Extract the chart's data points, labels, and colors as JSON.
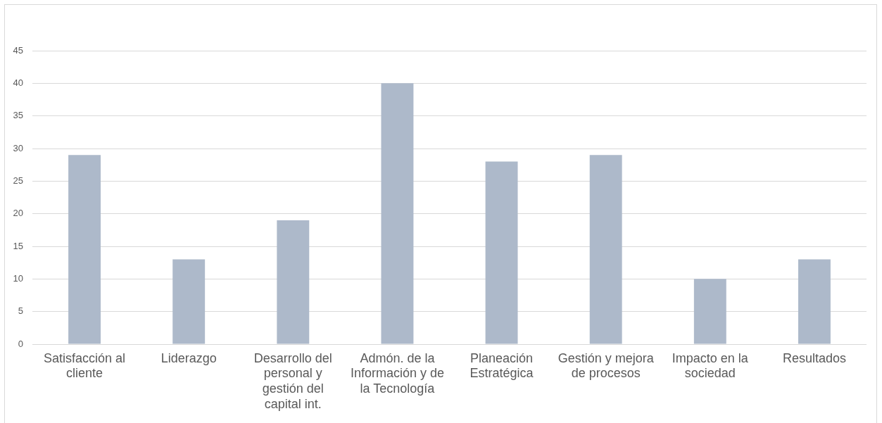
{
  "chart_data": {
    "type": "bar",
    "categories": [
      "Satisfacción al cliente",
      "Liderazgo",
      "Desarrollo del personal y gestión del capital int.",
      "Admón. de la Información y de la Tecnología",
      "Planeación Estratégica",
      "Gestión y mejora de procesos",
      "Impacto en la sociedad",
      "Resultados"
    ],
    "values": [
      29,
      13,
      19,
      40,
      28,
      29,
      10,
      13
    ],
    "color": "#adb9ca",
    "ylim": [
      0,
      45
    ],
    "yticks": [
      0,
      5,
      10,
      15,
      20,
      25,
      30,
      35,
      40,
      45
    ],
    "grid": "y"
  }
}
